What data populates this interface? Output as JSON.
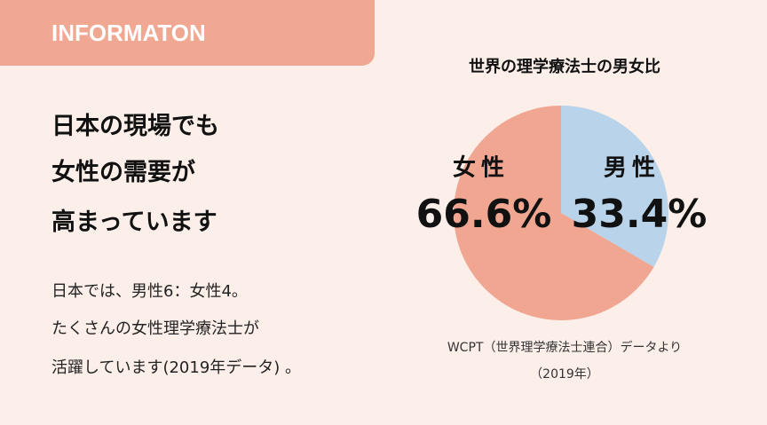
{
  "header": {
    "tag": "INFORMATON"
  },
  "headline": [
    "日本の現場でも",
    "女性の需要が",
    "高まっています"
  ],
  "body": [
    "日本では、男性6：女性4。",
    "たくさんの女性理学療法士が",
    "活躍しています(2019年データ) 。"
  ],
  "chart_data": {
    "type": "pie",
    "title": "世界の理学療法士の男女比",
    "categories": [
      "男性",
      "女性"
    ],
    "values": [
      33.4,
      66.6
    ],
    "value_labels": [
      "33.4%",
      "66.6%"
    ],
    "colors": [
      "#b8d3ea",
      "#f0a690"
    ],
    "source": [
      "WCPT（世界理学療法士連合）データより",
      "（2019年）"
    ]
  }
}
